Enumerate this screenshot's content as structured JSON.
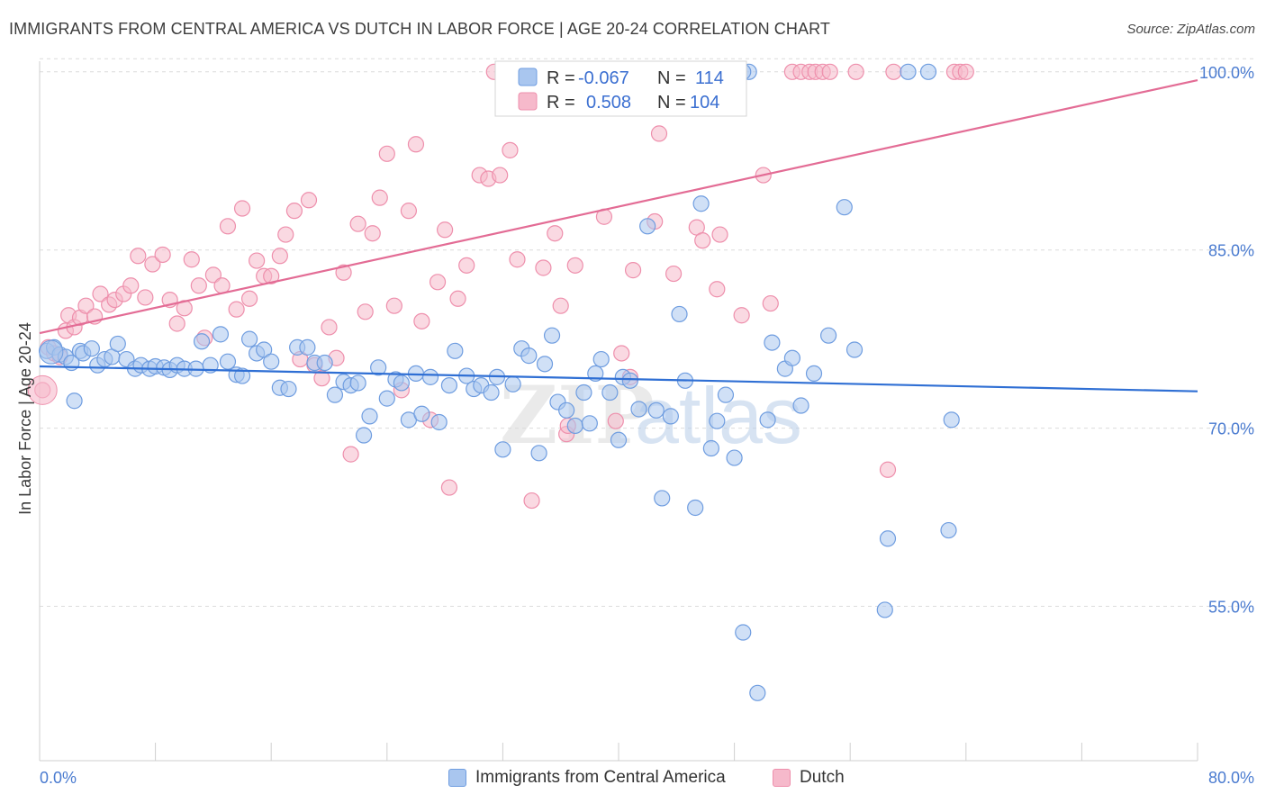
{
  "title": "IMMIGRANTS FROM CENTRAL AMERICA VS DUTCH IN LABOR FORCE | AGE 20-24 CORRELATION CHART",
  "source": "Source: ZipAtlas.com",
  "watermark": "ZIPatlas",
  "colors": {
    "blue_fill": "#a9c6ef",
    "blue_stroke": "#6f9de0",
    "blue_line": "#2f6fd4",
    "pink_fill": "#f6b9cb",
    "pink_stroke": "#ee8fac",
    "pink_line": "#e36c95",
    "tick_text": "#4a7bd0",
    "grid": "#dcdcdc"
  },
  "legend": {
    "r_label": "R =",
    "n_label": "N =",
    "blue_r": "-0.067",
    "blue_n": "114",
    "pink_r": "0.508",
    "pink_n": "104"
  },
  "bottom_legend": {
    "series1": "Immigrants from Central America",
    "series2": "Dutch"
  },
  "chart_data": {
    "type": "scatter",
    "title": "IMMIGRANTS FROM CENTRAL AMERICA VS DUTCH IN LABOR FORCE | AGE 20-24 CORRELATION CHART",
    "xlabel": "",
    "ylabel": "In Labor Force | Age 20-24",
    "xlim": [
      0,
      80
    ],
    "ylim": [
      42,
      101.5
    ],
    "x_tick_labels": [
      "0.0%",
      "80.0%"
    ],
    "y_ticks": [
      55,
      70,
      85,
      100
    ],
    "y_tick_labels": [
      "55.0%",
      "70.0%",
      "85.0%",
      "100.0%"
    ],
    "grid": true,
    "legend_position": "top-center",
    "series": [
      {
        "name": "Immigrants from Central America",
        "r": -0.067,
        "n": 114,
        "trend": {
          "x": [
            0,
            80
          ],
          "y": [
            75.2,
            73.1
          ]
        },
        "points": [
          [
            0.5,
            76.5
          ],
          [
            1.0,
            76.8
          ],
          [
            1.4,
            76.2
          ],
          [
            1.8,
            76.0
          ],
          [
            2.2,
            75.5
          ],
          [
            2.4,
            72.3
          ],
          [
            2.8,
            76.5
          ],
          [
            3.0,
            76.3
          ],
          [
            3.6,
            76.7
          ],
          [
            4.0,
            75.3
          ],
          [
            4.5,
            75.8
          ],
          [
            5.0,
            76.0
          ],
          [
            5.4,
            77.1
          ],
          [
            6.0,
            75.8
          ],
          [
            6.6,
            75.0
          ],
          [
            7.0,
            75.3
          ],
          [
            7.6,
            75.0
          ],
          [
            8.0,
            75.2
          ],
          [
            8.6,
            75.1
          ],
          [
            9.0,
            74.9
          ],
          [
            9.5,
            75.3
          ],
          [
            10.0,
            75.0
          ],
          [
            10.8,
            75.0
          ],
          [
            11.2,
            77.3
          ],
          [
            11.8,
            75.3
          ],
          [
            12.5,
            77.9
          ],
          [
            13.0,
            75.6
          ],
          [
            13.6,
            74.5
          ],
          [
            14.0,
            74.4
          ],
          [
            14.5,
            77.5
          ],
          [
            15.0,
            76.3
          ],
          [
            15.5,
            76.6
          ],
          [
            16.0,
            75.6
          ],
          [
            16.6,
            73.4
          ],
          [
            17.2,
            73.3
          ],
          [
            17.8,
            76.8
          ],
          [
            18.5,
            76.8
          ],
          [
            19.0,
            75.5
          ],
          [
            19.7,
            75.5
          ],
          [
            20.4,
            72.8
          ],
          [
            21.0,
            73.9
          ],
          [
            21.5,
            73.6
          ],
          [
            22.0,
            73.8
          ],
          [
            22.4,
            69.4
          ],
          [
            22.8,
            71.0
          ],
          [
            23.4,
            75.1
          ],
          [
            24.0,
            72.5
          ],
          [
            24.6,
            74.1
          ],
          [
            25.0,
            73.8
          ],
          [
            25.5,
            70.7
          ],
          [
            26.0,
            74.6
          ],
          [
            26.4,
            71.2
          ],
          [
            27.0,
            74.3
          ],
          [
            27.6,
            70.5
          ],
          [
            28.3,
            73.6
          ],
          [
            28.7,
            76.5
          ],
          [
            29.5,
            74.4
          ],
          [
            30.0,
            73.3
          ],
          [
            30.5,
            73.6
          ],
          [
            31.2,
            73.0
          ],
          [
            31.6,
            74.3
          ],
          [
            32.0,
            68.2
          ],
          [
            32.7,
            73.7
          ],
          [
            33.3,
            76.7
          ],
          [
            33.8,
            76.1
          ],
          [
            34.5,
            67.9
          ],
          [
            34.9,
            75.4
          ],
          [
            35.4,
            77.8
          ],
          [
            35.8,
            72.2
          ],
          [
            36.4,
            71.5
          ],
          [
            37.0,
            70.2
          ],
          [
            37.6,
            73.0
          ],
          [
            38.0,
            70.4
          ],
          [
            38.4,
            74.6
          ],
          [
            38.8,
            75.8
          ],
          [
            39.4,
            73.0
          ],
          [
            40.0,
            69.0
          ],
          [
            40.3,
            74.3
          ],
          [
            40.8,
            74.0
          ],
          [
            41.4,
            71.6
          ],
          [
            42.0,
            87.0
          ],
          [
            42.6,
            71.5
          ],
          [
            43.0,
            64.1
          ],
          [
            43.6,
            71.0
          ],
          [
            44.2,
            79.6
          ],
          [
            44.6,
            74.0
          ],
          [
            45.3,
            63.3
          ],
          [
            45.7,
            88.9
          ],
          [
            46.4,
            68.3
          ],
          [
            46.8,
            70.6
          ],
          [
            47.4,
            72.8
          ],
          [
            48.0,
            67.5
          ],
          [
            48.6,
            52.8
          ],
          [
            49.6,
            47.7
          ],
          [
            50.3,
            70.7
          ],
          [
            50.6,
            77.2
          ],
          [
            51.5,
            75.0
          ],
          [
            52.0,
            75.9
          ],
          [
            52.6,
            71.9
          ],
          [
            53.5,
            74.6
          ],
          [
            54.5,
            77.8
          ],
          [
            55.6,
            88.6
          ],
          [
            56.3,
            76.6
          ],
          [
            58.4,
            54.7
          ],
          [
            58.6,
            60.7
          ],
          [
            60.0,
            100.0
          ],
          [
            61.4,
            100.0
          ],
          [
            62.8,
            61.4
          ],
          [
            63.0,
            70.7
          ],
          [
            49.0,
            100.0
          ],
          [
            48.6,
            100.0
          ],
          [
            48.3,
            100.0
          ],
          [
            48.0,
            100.0
          ]
        ]
      },
      {
        "name": "Dutch",
        "r": 0.508,
        "n": 104,
        "trend": {
          "x": [
            0,
            80
          ],
          "y": [
            78.0,
            99.3
          ]
        },
        "points": [
          [
            0.2,
            73.2
          ],
          [
            0.6,
            76.8
          ],
          [
            1.0,
            76.3
          ],
          [
            1.4,
            76.0
          ],
          [
            1.8,
            78.2
          ],
          [
            2.0,
            79.5
          ],
          [
            2.4,
            78.5
          ],
          [
            2.8,
            79.3
          ],
          [
            3.2,
            80.3
          ],
          [
            3.8,
            79.4
          ],
          [
            4.2,
            81.3
          ],
          [
            4.8,
            80.4
          ],
          [
            5.2,
            80.8
          ],
          [
            5.8,
            81.3
          ],
          [
            6.3,
            82.0
          ],
          [
            6.8,
            84.5
          ],
          [
            7.3,
            81.0
          ],
          [
            7.8,
            83.8
          ],
          [
            8.5,
            84.6
          ],
          [
            9.0,
            80.8
          ],
          [
            9.5,
            78.8
          ],
          [
            10.0,
            80.1
          ],
          [
            10.5,
            84.2
          ],
          [
            11.0,
            82.0
          ],
          [
            11.4,
            77.6
          ],
          [
            12.0,
            82.9
          ],
          [
            12.6,
            82.0
          ],
          [
            13.0,
            87.0
          ],
          [
            13.6,
            80.0
          ],
          [
            14.0,
            88.5
          ],
          [
            14.5,
            80.9
          ],
          [
            15.0,
            84.1
          ],
          [
            15.5,
            82.8
          ],
          [
            16.0,
            82.8
          ],
          [
            16.6,
            84.5
          ],
          [
            17.0,
            86.3
          ],
          [
            17.6,
            88.3
          ],
          [
            18.0,
            75.8
          ],
          [
            18.6,
            89.2
          ],
          [
            19.0,
            75.3
          ],
          [
            19.5,
            74.2
          ],
          [
            20.0,
            78.5
          ],
          [
            20.5,
            75.9
          ],
          [
            21.0,
            83.1
          ],
          [
            21.5,
            67.8
          ],
          [
            22.0,
            87.2
          ],
          [
            22.5,
            79.8
          ],
          [
            23.0,
            86.4
          ],
          [
            23.5,
            89.4
          ],
          [
            24.0,
            93.1
          ],
          [
            24.5,
            80.3
          ],
          [
            25.0,
            73.2
          ],
          [
            25.5,
            88.3
          ],
          [
            26.0,
            93.9
          ],
          [
            26.4,
            79.0
          ],
          [
            27.0,
            70.7
          ],
          [
            27.5,
            82.3
          ],
          [
            28.0,
            86.7
          ],
          [
            28.3,
            65.0
          ],
          [
            28.9,
            80.9
          ],
          [
            29.5,
            83.7
          ],
          [
            30.4,
            91.3
          ],
          [
            31.0,
            91.0
          ],
          [
            31.4,
            100.0
          ],
          [
            31.8,
            91.3
          ],
          [
            32.5,
            93.4
          ],
          [
            33.0,
            84.2
          ],
          [
            34.0,
            63.9
          ],
          [
            34.8,
            83.5
          ],
          [
            35.6,
            86.4
          ],
          [
            36.0,
            80.3
          ],
          [
            36.4,
            69.5
          ],
          [
            37.0,
            83.7
          ],
          [
            38.6,
            100.0
          ],
          [
            39.0,
            87.8
          ],
          [
            39.8,
            70.6
          ],
          [
            40.2,
            76.3
          ],
          [
            40.8,
            74.3
          ],
          [
            41.0,
            83.3
          ],
          [
            42.5,
            87.4
          ],
          [
            42.8,
            94.8
          ],
          [
            43.8,
            83.0
          ],
          [
            45.4,
            86.9
          ],
          [
            45.8,
            85.8
          ],
          [
            46.8,
            81.7
          ],
          [
            47.0,
            86.3
          ],
          [
            48.5,
            79.5
          ],
          [
            50.0,
            91.3
          ],
          [
            50.5,
            80.5
          ],
          [
            52.0,
            100.0
          ],
          [
            52.6,
            100.0
          ],
          [
            53.2,
            100.0
          ],
          [
            53.6,
            100.0
          ],
          [
            54.1,
            100.0
          ],
          [
            54.6,
            100.0
          ],
          [
            56.4,
            100.0
          ],
          [
            58.6,
            66.5
          ],
          [
            59.0,
            100.0
          ],
          [
            63.2,
            100.0
          ],
          [
            63.6,
            100.0
          ],
          [
            64.0,
            100.0
          ],
          [
            36.5,
            70.2
          ]
        ]
      }
    ]
  }
}
